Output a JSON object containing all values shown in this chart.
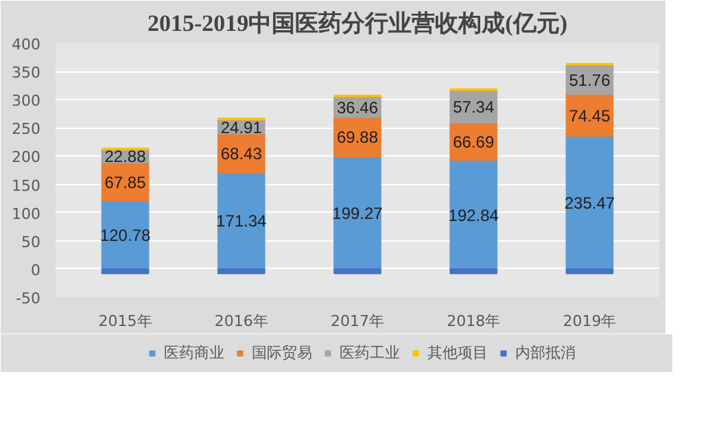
{
  "chart_data": {
    "type": "bar",
    "title": "2015-2019中国医药分行业营收构成(亿元)",
    "categories": [
      "2015年",
      "2016年",
      "2017年",
      "2018年",
      "2019年"
    ],
    "stacked": true,
    "ylim": [
      -50,
      400
    ],
    "yticks": [
      -50,
      0,
      50,
      100,
      150,
      200,
      250,
      300,
      350,
      400
    ],
    "grid": "y",
    "legend": "bottom",
    "series": [
      {
        "name": "医药商业",
        "color": "#5b9bd5",
        "values": [
          120.78,
          171.34,
          199.27,
          192.84,
          235.47
        ],
        "value_labels": [
          "120.78",
          "171.34",
          "199.27",
          "192.84",
          "235.47"
        ]
      },
      {
        "name": "国际贸易",
        "color": "#ed7d31",
        "values": [
          67.85,
          68.43,
          69.88,
          66.69,
          74.45
        ],
        "value_labels": [
          "67.85",
          "68.43",
          "69.88",
          "66.69",
          "74.45"
        ]
      },
      {
        "name": "医药工业",
        "color": "#a5a5a5",
        "values": [
          22.88,
          24.91,
          36.46,
          57.34,
          51.76
        ],
        "value_labels": [
          "22.88",
          "24.91",
          "36.46",
          "57.34",
          "51.76"
        ]
      },
      {
        "name": "其他项目",
        "color": "#ffc000",
        "values": [
          2,
          2,
          2,
          2,
          2
        ]
      },
      {
        "name": "内部抵消",
        "color": "#4472c4",
        "values": [
          -8,
          -8,
          -8,
          -8,
          -8
        ]
      }
    ]
  }
}
